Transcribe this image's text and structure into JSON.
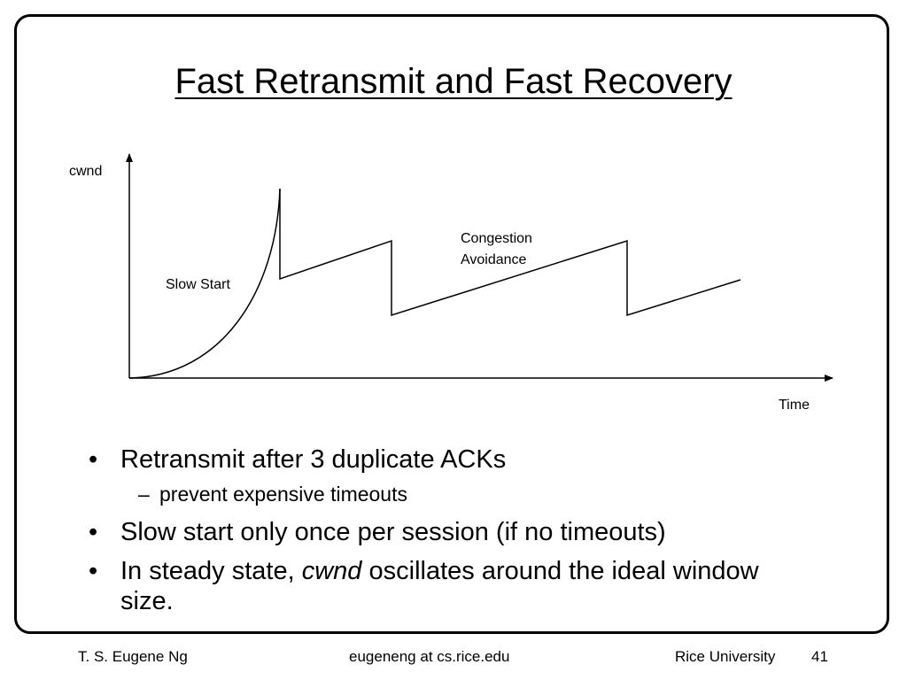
{
  "slide": {
    "title": "Fast Retransmit and Fast Recovery"
  },
  "diagram": {
    "y_axis_label": "cwnd",
    "x_axis_label": "Time",
    "labels": {
      "slow_start": "Slow Start",
      "congestion_line1": "Congestion",
      "congestion_line2": "Avoidance"
    }
  },
  "bullets": {
    "b1_mark": "•",
    "b1": "Retransmit after 3 duplicate ACKs",
    "b1_sub_mark": "–",
    "b1_sub": "prevent expensive timeouts",
    "b2_mark": "•",
    "b2": "Slow start only once per session (if no timeouts)",
    "b3_mark": "•",
    "b3_prefix": "In steady state, ",
    "b3_italic": "cwnd",
    "b3_suffix": " oscillates around the ideal window size."
  },
  "footer": {
    "author": "T. S. Eugene Ng",
    "email": "eugeneng at cs.rice.edu",
    "institution": "Rice University",
    "page_number": "41"
  }
}
